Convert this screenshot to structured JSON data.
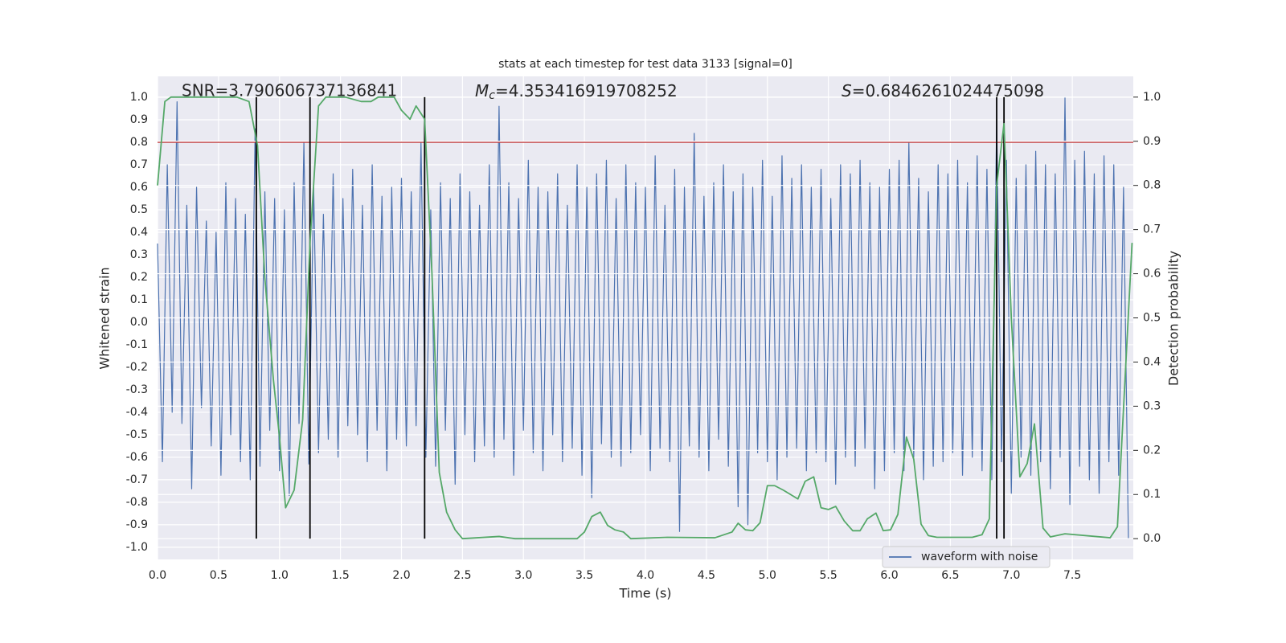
{
  "chart_data": {
    "type": "line",
    "title": "stats at each timestep for test data 3133 [signal=0]",
    "x_label": "Time (s)",
    "y_label": "Whitened strain",
    "y2_label": "Detection probability",
    "annotations": [
      {
        "text": "SNR=3.790606737136841"
      },
      {
        "symbol": "M",
        "subscript": "c",
        "text": "=4.353416919708252"
      },
      {
        "symbol": "S",
        "text": "=0.6846261024475098"
      }
    ],
    "xlim": [
      0,
      8
    ],
    "xticks": [
      {
        "value": 0,
        "label": "0.0"
      },
      0.5,
      {
        "value": 1,
        "label": "1.0"
      },
      1.5,
      {
        "value": 2,
        "label": "2.0"
      },
      2.5,
      {
        "value": 3,
        "label": "3.0"
      },
      3.5,
      {
        "value": 4,
        "label": "4.0"
      },
      4.5,
      {
        "value": 5,
        "label": "5.0"
      },
      5.5,
      {
        "value": 6,
        "label": "6.0"
      },
      6.5,
      {
        "value": 7,
        "label": "7.0"
      },
      7.5
    ],
    "ylim": [
      -1.054,
      1.093
    ],
    "yticks": [
      {
        "value": -1,
        "label": "-1.0"
      },
      -0.9,
      -0.8,
      -0.7,
      -0.6,
      -0.5,
      -0.4,
      -0.3,
      -0.2,
      -0.1,
      {
        "value": 0,
        "label": "0.0"
      },
      0.1,
      0.2,
      0.3,
      0.4,
      0.5,
      0.6,
      0.7,
      0.8,
      0.9,
      {
        "value": 1,
        "label": "1.0"
      }
    ],
    "y2lim": [
      -0.047,
      1.047
    ],
    "y2ticks": [
      {
        "value": 0,
        "label": "0.0"
      },
      0.1,
      0.2,
      0.3,
      0.4,
      0.5,
      0.6,
      0.7,
      0.8,
      0.9,
      {
        "value": 1,
        "label": "1.0"
      }
    ],
    "grid": true,
    "legend": "lower right",
    "series": [
      {
        "name": "waveform with noise",
        "color": "#4c72b0",
        "x": [
          0,
          0.04,
          0.08,
          0.12,
          0.16,
          0.2,
          0.24,
          0.28,
          0.32,
          0.36,
          0.4,
          0.44,
          0.48,
          0.52,
          0.56,
          0.6,
          0.64,
          0.68,
          0.72,
          0.76,
          0.8,
          0.84,
          0.88,
          0.92,
          0.96,
          1,
          1.04,
          1.08,
          1.12,
          1.16,
          1.2,
          1.24,
          1.28,
          1.32,
          1.36,
          1.4,
          1.44,
          1.48,
          1.52,
          1.56,
          1.6,
          1.64,
          1.68,
          1.72,
          1.76,
          1.8,
          1.84,
          1.88,
          1.92,
          1.96,
          2,
          2.04,
          2.08,
          2.12,
          2.16,
          2.2,
          2.24,
          2.28,
          2.32,
          2.36,
          2.4,
          2.44,
          2.48,
          2.52,
          2.56,
          2.6,
          2.64,
          2.68,
          2.72,
          2.76,
          2.8,
          2.84,
          2.88,
          2.92,
          2.96,
          3,
          3.04,
          3.08,
          3.12,
          3.16,
          3.2,
          3.24,
          3.28,
          3.32,
          3.36,
          3.4,
          3.44,
          3.48,
          3.52,
          3.56,
          3.6,
          3.64,
          3.68,
          3.72,
          3.76,
          3.8,
          3.84,
          3.88,
          3.92,
          3.96,
          4,
          4.04,
          4.08,
          4.12,
          4.16,
          4.2,
          4.24,
          4.28,
          4.32,
          4.36,
          4.4,
          4.44,
          4.48,
          4.52,
          4.56,
          4.6,
          4.64,
          4.68,
          4.72,
          4.76,
          4.8,
          4.84,
          4.88,
          4.92,
          4.96,
          5,
          5.04,
          5.08,
          5.12,
          5.16,
          5.2,
          5.24,
          5.28,
          5.32,
          5.36,
          5.4,
          5.44,
          5.48,
          5.52,
          5.56,
          5.6,
          5.64,
          5.68,
          5.72,
          5.76,
          5.8,
          5.84,
          5.88,
          5.92,
          5.96,
          6,
          6.04,
          6.08,
          6.12,
          6.16,
          6.2,
          6.24,
          6.28,
          6.32,
          6.36,
          6.4,
          6.44,
          6.48,
          6.52,
          6.56,
          6.6,
          6.64,
          6.68,
          6.72,
          6.76,
          6.8,
          6.84,
          6.88,
          6.92,
          6.96,
          7,
          7.04,
          7.08,
          7.12,
          7.16,
          7.2,
          7.24,
          7.28,
          7.32,
          7.36,
          7.4,
          7.44,
          7.48,
          7.52,
          7.56,
          7.6,
          7.64,
          7.68,
          7.72,
          7.76,
          7.8,
          7.84,
          7.88,
          7.92,
          7.96
        ],
        "values": [
          0.35,
          -0.62,
          0.7,
          -0.4,
          0.98,
          -0.45,
          0.52,
          -0.74,
          0.6,
          -0.38,
          0.45,
          -0.55,
          0.4,
          -0.68,
          0.62,
          -0.5,
          0.55,
          -0.62,
          0.48,
          -0.7,
          0.86,
          -0.64,
          0.58,
          -0.48,
          0.55,
          -0.66,
          0.5,
          -0.77,
          0.62,
          -0.45,
          0.8,
          -0.63,
          0.6,
          -0.58,
          0.48,
          -0.52,
          0.66,
          -0.6,
          0.55,
          -0.46,
          0.68,
          -0.5,
          0.52,
          -0.62,
          0.7,
          -0.48,
          0.56,
          -0.66,
          0.6,
          -0.52,
          0.64,
          -0.55,
          0.58,
          -0.46,
          0.8,
          -0.6,
          0.5,
          -0.64,
          0.62,
          -0.48,
          0.55,
          -0.72,
          0.66,
          -0.5,
          0.58,
          -0.62,
          0.52,
          -0.55,
          0.7,
          -0.6,
          0.96,
          -0.52,
          0.62,
          -0.68,
          0.55,
          -0.48,
          0.72,
          -0.58,
          0.6,
          -0.66,
          0.58,
          -0.5,
          0.66,
          -0.62,
          0.52,
          -0.56,
          0.7,
          -0.68,
          0.6,
          -0.78,
          0.66,
          -0.54,
          0.72,
          -0.6,
          0.55,
          -0.64,
          0.7,
          -0.58,
          0.62,
          -0.5,
          0.6,
          -0.66,
          0.74,
          -0.56,
          0.52,
          -0.62,
          0.68,
          -0.93,
          0.6,
          -0.55,
          0.84,
          -0.6,
          0.56,
          -0.66,
          0.62,
          -0.52,
          0.7,
          -0.64,
          0.58,
          -0.82,
          0.66,
          -0.9,
          0.6,
          -0.58,
          0.72,
          -0.62,
          0.56,
          -0.7,
          0.74,
          -0.6,
          0.64,
          -0.56,
          0.7,
          -0.66,
          0.6,
          -0.58,
          0.68,
          -0.62,
          0.55,
          -0.72,
          0.7,
          -0.6,
          0.66,
          -0.64,
          0.72,
          -0.56,
          0.62,
          -0.74,
          0.6,
          -0.66,
          0.68,
          -0.58,
          0.72,
          -0.66,
          0.8,
          -0.6,
          0.64,
          -0.7,
          0.58,
          -0.64,
          0.7,
          -0.62,
          0.66,
          -0.58,
          0.72,
          -0.68,
          0.62,
          -0.6,
          0.74,
          -0.66,
          0.68,
          -0.7,
          0.9,
          -0.62,
          0.72,
          -0.76,
          0.64,
          -0.6,
          0.7,
          -0.68,
          0.76,
          -0.62,
          0.7,
          -0.74,
          0.66,
          -0.6,
          1,
          -0.81,
          0.72,
          -0.64,
          0.76,
          -0.7,
          0.66,
          -0.76,
          0.74,
          -0.62,
          0.7,
          -0.68,
          0.6,
          -0.96
        ]
      },
      {
        "color": "#55a868",
        "axis": "y2",
        "x": [
          0,
          0.06,
          0.11,
          0.65,
          0.75,
          0.82,
          0.88,
          0.95,
          1,
          1.05,
          1.12,
          1.19,
          1.25,
          1.32,
          1.38,
          1.54,
          1.67,
          1.75,
          1.81,
          1.94,
          2,
          2.07,
          2.12,
          2.19,
          2.25,
          2.31,
          2.37,
          2.44,
          2.5,
          2.8,
          2.93,
          3.44,
          3.5,
          3.56,
          3.63,
          3.69,
          3.75,
          3.82,
          3.88,
          4.18,
          4.57,
          4.71,
          4.76,
          4.82,
          4.88,
          4.94,
          5,
          5.06,
          5.13,
          5.19,
          5.25,
          5.31,
          5.38,
          5.44,
          5.5,
          5.56,
          5.63,
          5.7,
          5.76,
          5.82,
          5.89,
          5.95,
          6.01,
          6.07,
          6.14,
          6.2,
          6.26,
          6.32,
          6.39,
          6.68,
          6.76,
          6.82,
          6.88,
          6.94,
          7,
          7.07,
          7.13,
          7.19,
          7.26,
          7.32,
          7.44,
          7.81,
          7.87,
          7.99
        ],
        "values": [
          0.8,
          0.99,
          1,
          1,
          0.99,
          0.89,
          0.59,
          0.36,
          0.23,
          0.07,
          0.11,
          0.27,
          0.67,
          0.98,
          1,
          1,
          0.99,
          0.99,
          1,
          1,
          0.97,
          0.95,
          0.98,
          0.95,
          0.6,
          0.15,
          0.06,
          0.02,
          0,
          0.005,
          0,
          0,
          0.015,
          0.05,
          0.06,
          0.03,
          0.02,
          0.015,
          0,
          0.003,
          0.002,
          0.015,
          0.035,
          0.02,
          0.018,
          0.036,
          0.12,
          0.12,
          0.11,
          0.1,
          0.09,
          0.13,
          0.14,
          0.07,
          0.066,
          0.073,
          0.04,
          0.018,
          0.018,
          0.045,
          0.058,
          0.018,
          0.02,
          0.055,
          0.23,
          0.18,
          0.033,
          0.007,
          0.003,
          0.003,
          0.009,
          0.045,
          0.8,
          0.94,
          0.5,
          0.14,
          0.17,
          0.26,
          0.024,
          0.004,
          0.011,
          0.002,
          0.027,
          0.67
        ]
      }
    ],
    "hlines": [
      {
        "value": 0.8,
        "axis": "y",
        "color": "#c03d3e"
      }
    ],
    "vlines": {
      "x": [
        0.81,
        1.25,
        2.19,
        6.88,
        6.94
      ],
      "ymin": 0,
      "ymax": 1,
      "axis": "y2",
      "color": "#000000"
    }
  }
}
